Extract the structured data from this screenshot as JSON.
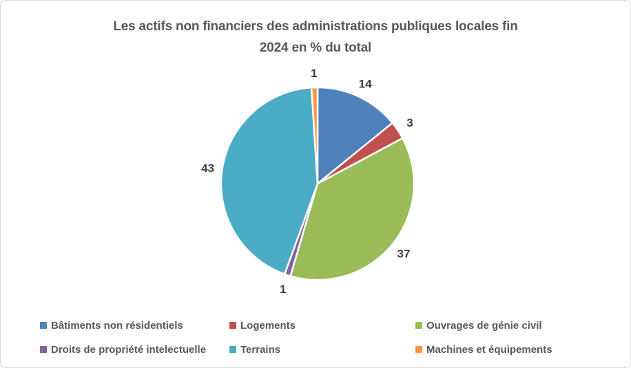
{
  "title": {
    "text": "Les actifs non financiers des administrations publiques locales fin 2024 en % du total",
    "lines": [
      "Les actifs non financiers des administrations publiques locales fin",
      "2024 en % du total"
    ]
  },
  "chart_data": {
    "type": "pie",
    "title": "Les actifs non financiers des administrations publiques locales fin 2024 en % du total",
    "unit": "% du total",
    "start_angle_deg": 0,
    "direction": "clockwise",
    "data_labels_position": "outside",
    "legend_position": "bottom",
    "slices": [
      {
        "label": "Bâtiments non résidentiels",
        "value": 14,
        "color": "#4F81BD"
      },
      {
        "label": "Logements",
        "value": 3,
        "color": "#C0504D"
      },
      {
        "label": "Ouvrages de génie civil",
        "value": 37,
        "color": "#9BBB59"
      },
      {
        "label": "Droits de propriété intelectuelle",
        "value": 1,
        "color": "#8064A2"
      },
      {
        "label": "Terrains",
        "value": 43,
        "color": "#4BACC6"
      },
      {
        "label": "Machines et équipements",
        "value": 1,
        "color": "#F79646"
      }
    ]
  },
  "style": {
    "background": "#FFFFFF",
    "frame_border_color": "#D9D9D9",
    "title_color": "#595959",
    "data_label_color": "#404040",
    "legend_text_color": "#595959",
    "slice_border_color": "#FFFFFF"
  }
}
